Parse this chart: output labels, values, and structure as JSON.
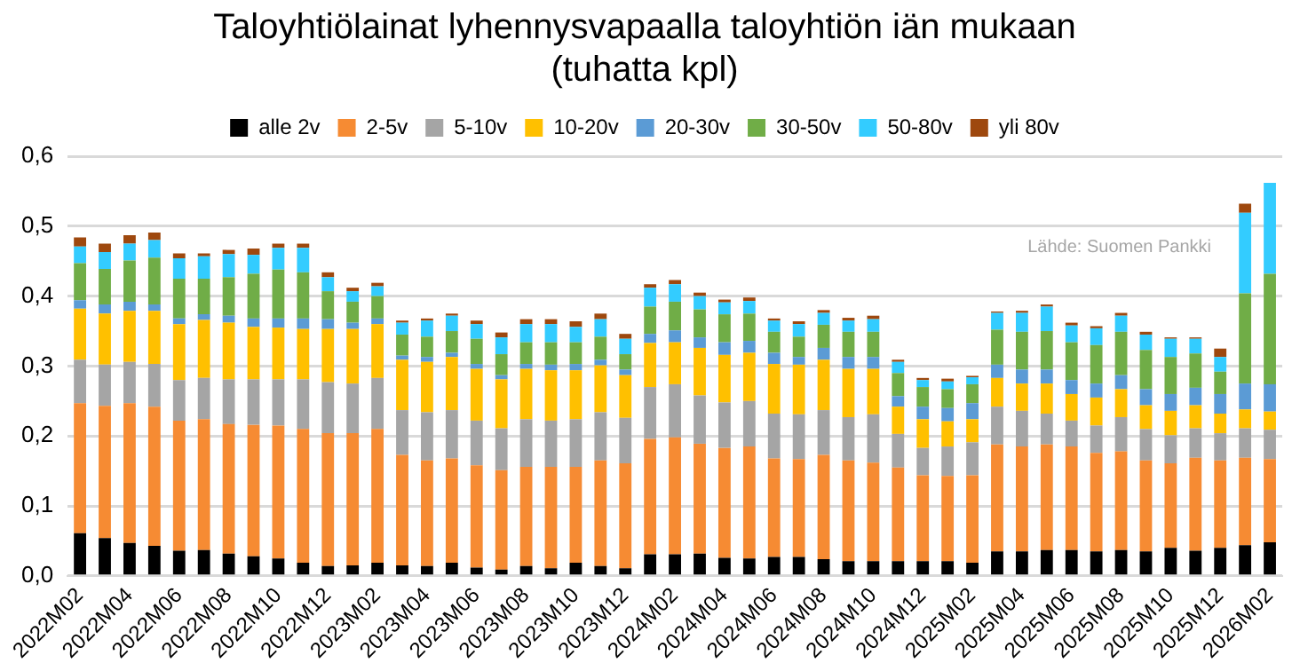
{
  "chart_data": {
    "type": "bar",
    "stacked": true,
    "title": "Taloyhtiölainat lyhennysvapaalla taloyhtiön iän mukaan\n(tuhatta kpl)",
    "categories": [
      "2022M02",
      null,
      "2022M04",
      null,
      "2022M06",
      null,
      "2022M08",
      null,
      "2022M10",
      null,
      "2022M12",
      null,
      "2023M02",
      null,
      "2023M04",
      null,
      "2023M06",
      null,
      "2023M08",
      null,
      "2023M10",
      null,
      "2023M12",
      null,
      "2024M02",
      null,
      "2024M04",
      null,
      "2024M06",
      null,
      "2024M08",
      null,
      "2024M10",
      null,
      "2024M12",
      null,
      "2025M02",
      null,
      "2025M04",
      null,
      "2025M06",
      null,
      "2025M08",
      null,
      "2025M10",
      null,
      "2025M12",
      null,
      "2026M02"
    ],
    "series": [
      {
        "name": "alle 2v",
        "color": "#000000",
        "values": [
          0.061,
          0.054,
          0.047,
          0.043,
          0.036,
          0.037,
          0.032,
          0.028,
          0.025,
          0.019,
          0.014,
          0.015,
          0.019,
          0.015,
          0.014,
          0.019,
          0.012,
          0.009,
          0.014,
          0.011,
          0.019,
          0.014,
          0.011,
          0.031,
          0.031,
          0.032,
          0.026,
          0.025,
          0.027,
          0.027,
          0.024,
          0.021,
          0.021,
          0.021,
          0.021,
          0.021,
          0.019,
          0.035,
          0.035,
          0.037,
          0.037,
          0.035,
          0.037,
          0.035,
          0.04,
          0.036,
          0.04,
          0.044,
          0.048
        ]
      },
      {
        "name": "2-5v",
        "color": "#f68b33",
        "values": [
          0.186,
          0.189,
          0.2,
          0.199,
          0.186,
          0.187,
          0.185,
          0.188,
          0.19,
          0.191,
          0.19,
          0.189,
          0.191,
          0.158,
          0.151,
          0.149,
          0.146,
          0.142,
          0.142,
          0.145,
          0.137,
          0.151,
          0.15,
          0.165,
          0.167,
          0.157,
          0.157,
          0.16,
          0.141,
          0.14,
          0.149,
          0.144,
          0.141,
          0.134,
          0.123,
          0.122,
          0.125,
          0.153,
          0.15,
          0.151,
          0.148,
          0.141,
          0.141,
          0.13,
          0.121,
          0.133,
          0.125,
          0.125,
          0.119
        ]
      },
      {
        "name": "5-10v",
        "color": "#a5a5a5",
        "values": [
          0.062,
          0.059,
          0.059,
          0.061,
          0.058,
          0.059,
          0.064,
          0.065,
          0.066,
          0.071,
          0.073,
          0.071,
          0.073,
          0.064,
          0.069,
          0.069,
          0.064,
          0.06,
          0.068,
          0.066,
          0.068,
          0.069,
          0.065,
          0.074,
          0.076,
          0.069,
          0.065,
          0.065,
          0.064,
          0.064,
          0.064,
          0.062,
          0.069,
          0.048,
          0.039,
          0.042,
          0.047,
          0.054,
          0.051,
          0.044,
          0.037,
          0.039,
          0.049,
          0.045,
          0.04,
          0.042,
          0.039,
          0.042,
          0.042
        ]
      },
      {
        "name": "10-20v",
        "color": "#ffc000",
        "values": [
          0.073,
          0.073,
          0.073,
          0.076,
          0.08,
          0.083,
          0.081,
          0.075,
          0.074,
          0.072,
          0.076,
          0.078,
          0.077,
          0.072,
          0.072,
          0.076,
          0.074,
          0.07,
          0.072,
          0.072,
          0.07,
          0.067,
          0.061,
          0.063,
          0.06,
          0.068,
          0.068,
          0.069,
          0.071,
          0.071,
          0.072,
          0.069,
          0.065,
          0.039,
          0.041,
          0.036,
          0.033,
          0.041,
          0.039,
          0.043,
          0.038,
          0.04,
          0.04,
          0.034,
          0.035,
          0.033,
          0.028,
          0.027,
          0.026
        ]
      },
      {
        "name": "20-30v",
        "color": "#5b9bd5",
        "values": [
          0.012,
          0.013,
          0.013,
          0.009,
          0.008,
          0.008,
          0.01,
          0.012,
          0.013,
          0.015,
          0.014,
          0.009,
          0.008,
          0.006,
          0.007,
          0.006,
          0.007,
          0.006,
          0.007,
          0.008,
          0.009,
          0.008,
          0.008,
          0.013,
          0.017,
          0.015,
          0.018,
          0.017,
          0.016,
          0.011,
          0.017,
          0.017,
          0.017,
          0.015,
          0.018,
          0.019,
          0.023,
          0.019,
          0.02,
          0.02,
          0.02,
          0.02,
          0.02,
          0.023,
          0.024,
          0.025,
          0.028,
          0.037,
          0.039
        ]
      },
      {
        "name": "30-50v",
        "color": "#70ad47",
        "values": [
          0.053,
          0.051,
          0.059,
          0.067,
          0.057,
          0.051,
          0.055,
          0.064,
          0.07,
          0.066,
          0.04,
          0.03,
          0.032,
          0.03,
          0.029,
          0.031,
          0.036,
          0.03,
          0.031,
          0.032,
          0.031,
          0.033,
          0.022,
          0.039,
          0.041,
          0.04,
          0.04,
          0.039,
          0.03,
          0.029,
          0.033,
          0.036,
          0.036,
          0.033,
          0.028,
          0.027,
          0.027,
          0.05,
          0.054,
          0.055,
          0.054,
          0.055,
          0.062,
          0.056,
          0.053,
          0.049,
          0.032,
          0.129,
          0.158
        ]
      },
      {
        "name": "50-80v",
        "color": "#33ccff",
        "values": [
          0.024,
          0.024,
          0.024,
          0.025,
          0.029,
          0.032,
          0.033,
          0.027,
          0.031,
          0.035,
          0.02,
          0.015,
          0.014,
          0.017,
          0.023,
          0.022,
          0.021,
          0.024,
          0.026,
          0.026,
          0.022,
          0.025,
          0.022,
          0.027,
          0.025,
          0.019,
          0.017,
          0.018,
          0.016,
          0.018,
          0.017,
          0.016,
          0.018,
          0.016,
          0.01,
          0.011,
          0.01,
          0.024,
          0.027,
          0.035,
          0.024,
          0.024,
          0.023,
          0.022,
          0.026,
          0.021,
          0.021,
          0.115,
          0.13
        ]
      },
      {
        "name": "yli 80v",
        "color": "#9e480e",
        "values": [
          0.013,
          0.012,
          0.012,
          0.011,
          0.007,
          0.004,
          0.006,
          0.009,
          0.006,
          0.006,
          0.007,
          0.005,
          0.005,
          0.003,
          0.003,
          0.003,
          0.005,
          0.007,
          0.007,
          0.007,
          0.008,
          0.008,
          0.007,
          0.005,
          0.006,
          0.005,
          0.004,
          0.005,
          0.003,
          0.004,
          0.004,
          0.004,
          0.005,
          0.003,
          0.003,
          0.004,
          0.002,
          0.002,
          0.003,
          0.003,
          0.004,
          0.003,
          0.004,
          0.004,
          0.002,
          0.002,
          0.012,
          0.013,
          null
        ]
      }
    ],
    "ylim": [
      0,
      0.6
    ],
    "yticks": [
      {
        "value": 0,
        "label": "0,0"
      },
      {
        "value": 0.1,
        "label": "0,1"
      },
      {
        "value": 0.2,
        "label": "0,2"
      },
      {
        "value": 0.3,
        "label": "0,3"
      },
      {
        "value": 0.4,
        "label": "0,4"
      },
      {
        "value": 0.5,
        "label": "0,5"
      },
      {
        "value": 0.6,
        "label": "0,6"
      }
    ],
    "grid": "y",
    "legend": "top",
    "annotations": [
      "Lähde: Suomen Pankki"
    ]
  }
}
